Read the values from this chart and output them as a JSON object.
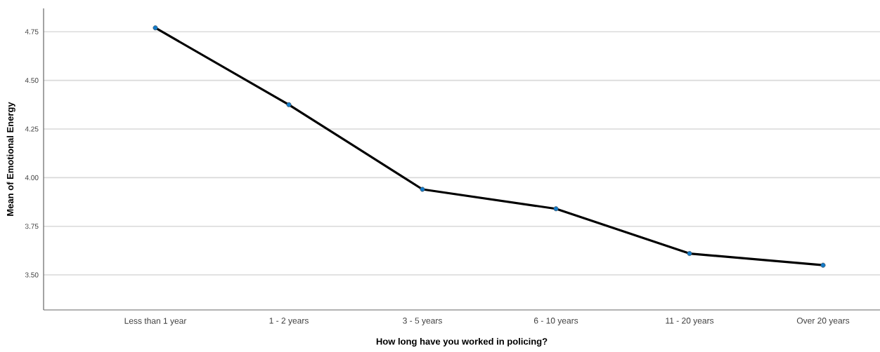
{
  "chart_data": {
    "type": "line",
    "xlabel": "How long have you worked in policing?",
    "ylabel": "Mean of Emotional Energy",
    "categories": [
      "Less than 1 year",
      "1 - 2 years",
      "3 - 5 years",
      "6 - 10 years",
      "11 - 20 years",
      "Over 20 years"
    ],
    "series": [
      {
        "color": "#000000",
        "values": [
          4.77,
          4.375,
          3.94,
          3.84,
          3.61,
          3.55
        ]
      }
    ],
    "ylim": [
      3.32,
      4.87
    ],
    "yticks": [
      {
        "value": 3.5,
        "label": "3.50"
      },
      {
        "value": 3.75,
        "label": "3.75"
      },
      {
        "value": 4.0,
        "label": "4.00"
      },
      {
        "value": 4.25,
        "label": "4.25"
      },
      {
        "value": 4.5,
        "label": "4.50"
      },
      {
        "value": 4.75,
        "label": "4.75"
      }
    ],
    "grid": "y",
    "marker": "circle",
    "line_style": "solid"
  }
}
